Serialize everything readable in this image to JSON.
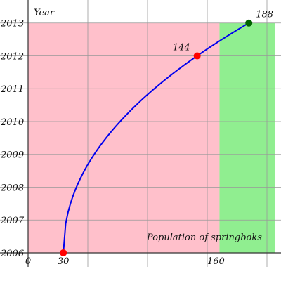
{
  "chart_data": {
    "type": "line",
    "ylabel": "Year",
    "xlabel": "Population of springboks",
    "x_ticks": [
      0,
      30,
      160
    ],
    "y_ticks": [
      2006,
      2007,
      2008,
      2009,
      2010,
      2011,
      2012,
      2013
    ],
    "y_tick_labels": [
      "2006",
      "2007",
      "2008",
      "2009",
      "2010",
      "2011",
      "2012",
      "2013"
    ],
    "x_tick_labels": [
      "0",
      "30",
      "160"
    ],
    "xlim": [
      0,
      213
    ],
    "ylim": [
      2006,
      2013.7
    ],
    "grid": true,
    "curve": {
      "color": "#0000ee",
      "points": [
        {
          "x": 30,
          "y": 2006
        },
        {
          "x": 144,
          "y": 2012
        },
        {
          "x": 188,
          "y": 2013
        }
      ]
    },
    "points": [
      {
        "x": 30,
        "y": 2006,
        "label": "",
        "color": "#ff0000"
      },
      {
        "x": 144,
        "y": 2012,
        "label": "144",
        "color": "#ff0000"
      },
      {
        "x": 188,
        "y": 2013,
        "label": "188",
        "color": "#006400"
      }
    ],
    "regions": [
      {
        "x_from": 0,
        "x_to": 163,
        "y_from": 2006,
        "y_to": 2013,
        "color": "#ffc0cb"
      },
      {
        "x_from": 163,
        "x_to": 210,
        "y_from": 2006,
        "y_to": 2013,
        "color": "#90ee90"
      }
    ]
  }
}
